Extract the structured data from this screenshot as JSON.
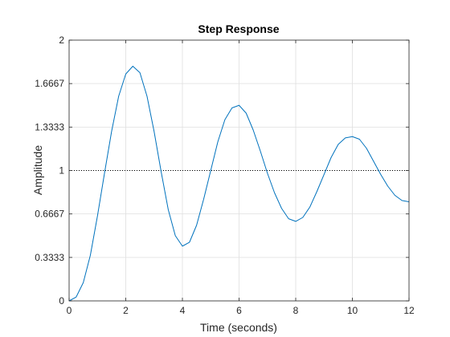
{
  "chart_data": {
    "type": "line",
    "title": "Step Response",
    "xlabel": "Time (seconds)",
    "ylabel": "Amplitude",
    "xlim": [
      0,
      12
    ],
    "ylim": [
      0,
      2
    ],
    "x_ticks": [
      0,
      2,
      4,
      6,
      8,
      10,
      12
    ],
    "x_tick_labels": [
      "0",
      "2",
      "4",
      "6",
      "8",
      "10",
      "12"
    ],
    "y_ticks": [
      0,
      0.3333,
      0.6667,
      1,
      1.3333,
      1.6667,
      2
    ],
    "y_tick_labels": [
      "0",
      "0.3333",
      "0.6667",
      "1",
      "1.3333",
      "1.6667",
      "2"
    ],
    "grid": true,
    "colors": {
      "series": "#0072bd",
      "grid": "#dfdfdf",
      "axes": "#262626",
      "reference": "#000000"
    },
    "reference_line": {
      "y": 1,
      "style": "dotted"
    },
    "series": [
      {
        "x": [
          0,
          0.25,
          0.5,
          0.75,
          1.0,
          1.25,
          1.5,
          1.75,
          2.0,
          2.25,
          2.5,
          2.75,
          3.0,
          3.25,
          3.5,
          3.75,
          4.0,
          4.25,
          4.5,
          4.75,
          5.0,
          5.25,
          5.5,
          5.75,
          6.0,
          6.25,
          6.5,
          6.75,
          7.0,
          7.25,
          7.5,
          7.75,
          8.0,
          8.25,
          8.5,
          8.75,
          9.0,
          9.25,
          9.5,
          9.75,
          10.0,
          10.25,
          10.5,
          10.75,
          11.0,
          11.25,
          11.5,
          11.75,
          12.0
        ],
        "y": [
          0,
          0.03,
          0.14,
          0.35,
          0.65,
          0.98,
          1.3,
          1.57,
          1.74,
          1.8,
          1.75,
          1.57,
          1.3,
          0.99,
          0.7,
          0.5,
          0.42,
          0.45,
          0.58,
          0.78,
          1.0,
          1.22,
          1.39,
          1.48,
          1.5,
          1.44,
          1.31,
          1.15,
          0.98,
          0.83,
          0.71,
          0.63,
          0.61,
          0.64,
          0.72,
          0.84,
          0.97,
          1.1,
          1.2,
          1.25,
          1.26,
          1.24,
          1.17,
          1.07,
          0.97,
          0.88,
          0.81,
          0.77,
          0.76
        ]
      }
    ]
  }
}
